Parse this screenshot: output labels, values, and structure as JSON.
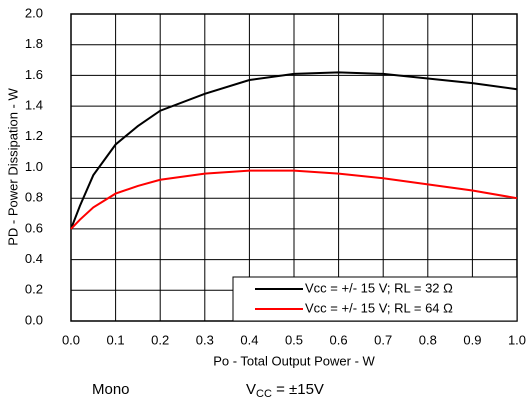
{
  "chart_data": {
    "type": "line",
    "x_label": "Po - Total Output Power - W",
    "y_label": "PD - Power Dissipation - W",
    "x": [
      0,
      0.02,
      0.05,
      0.1,
      0.15,
      0.2,
      0.3,
      0.4,
      0.5,
      0.6,
      0.7,
      0.8,
      0.9,
      1.0
    ],
    "series": [
      {
        "name": "Vcc = +/- 15 V; RL = 32 Ω",
        "color": "#000000",
        "values": [
          0.6,
          0.75,
          0.95,
          1.15,
          1.27,
          1.37,
          1.48,
          1.57,
          1.61,
          1.62,
          1.61,
          1.58,
          1.55,
          1.51
        ]
      },
      {
        "name": "Vcc = +/- 15 V; RL = 64 Ω",
        "color": "#ff0000",
        "values": [
          0.6,
          0.66,
          0.74,
          0.83,
          0.88,
          0.92,
          0.96,
          0.98,
          0.98,
          0.96,
          0.93,
          0.89,
          0.85,
          0.8
        ]
      }
    ],
    "xlim": [
      0,
      1.0
    ],
    "ylim": [
      0,
      2.0
    ],
    "xticks": [
      {
        "value": 0,
        "label": "0.0"
      },
      0.1,
      0.2,
      0.3,
      0.4,
      0.5,
      0.6,
      0.7,
      0.8,
      0.9,
      {
        "value": 1.0,
        "label": "1.0"
      }
    ],
    "yticks": [
      {
        "value": 0,
        "label": "0.0"
      },
      0.2,
      0.4,
      0.6,
      0.8,
      {
        "value": 1.0,
        "label": "1.0"
      },
      1.2,
      1.4,
      1.6,
      1.8,
      {
        "value": 2.0,
        "label": "2.0"
      }
    ],
    "grid": true,
    "legend": "lower right",
    "annotations": {
      "mode": "Mono",
      "supply": {
        "base": "V",
        "subscript": "CC",
        "rest": " = ±15V"
      }
    }
  }
}
